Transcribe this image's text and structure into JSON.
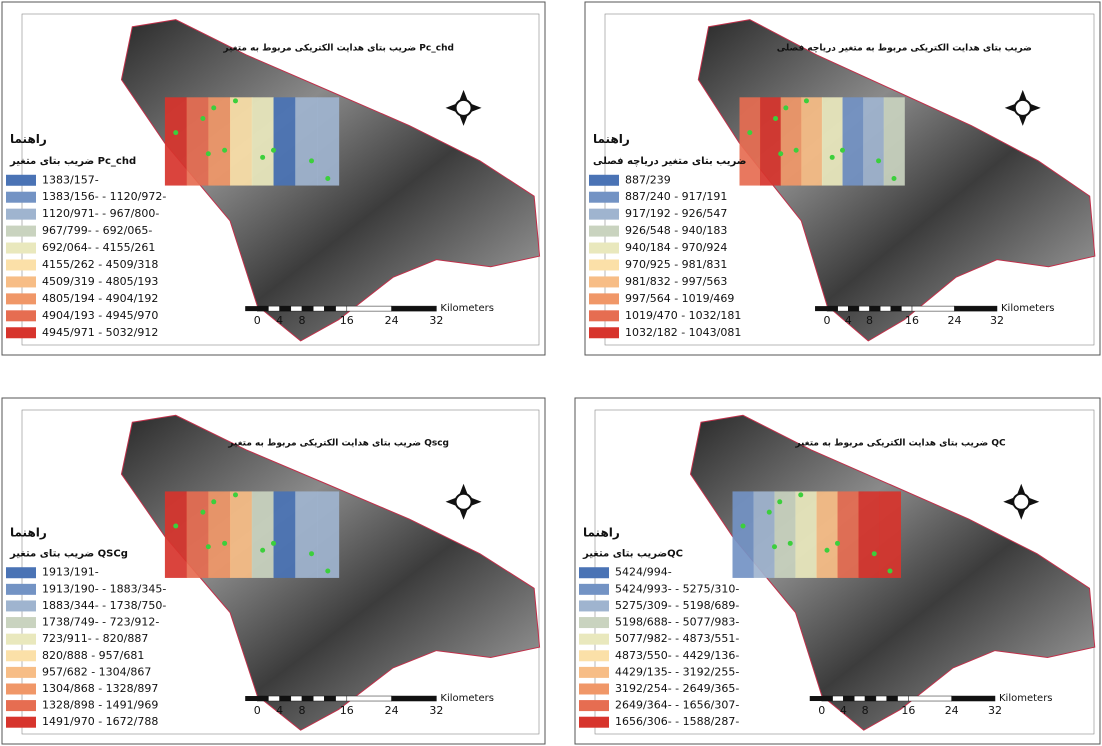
{
  "panels": [
    {
      "title": "ضریب بتای هدایت الکتریکی مربوط به متغیر Pc_chd",
      "legend_heading": "راهنما",
      "legend_title": "ضریب بتای متغیر Pc_chd",
      "legend": [
        {
          "label": "1383/157-",
          "color": "#4a73b5"
        },
        {
          "label": "1383/156- - 1120/972-",
          "color": "#7393c4"
        },
        {
          "label": "1120/971- - 967/800-",
          "color": "#9fb4cf"
        },
        {
          "label": "967/799- - 692/065-",
          "color": "#c9d3bf"
        },
        {
          "label": "692/064- - 4155/261",
          "color": "#e9e8bd"
        },
        {
          "label": "4155/262 - 4509/318",
          "color": "#fbe0a8"
        },
        {
          "label": "4509/319 - 4805/193",
          "color": "#f7bd86"
        },
        {
          "label": "4805/194 - 4904/192",
          "color": "#f09768"
        },
        {
          "label": "4904/193 - 4945/970",
          "color": "#e66d51"
        },
        {
          "label": "4945/971 - 5032/912",
          "color": "#d7342c"
        }
      ],
      "scale_labels": [
        "0",
        "4",
        "8",
        "16",
        "24",
        "32"
      ],
      "scale_unit": "Kilometers"
    },
    {
      "title": "ضریب بتای هدایت الکتریکی مربوط به متغیر دریاچه فصلی",
      "legend_heading": "راهنما",
      "legend_title": "ضریب بتای متغیر دریاچه فصلی",
      "legend": [
        {
          "label": "887/239",
          "color": "#4a73b5"
        },
        {
          "label": "887/240 - 917/191",
          "color": "#7393c4"
        },
        {
          "label": "917/192 - 926/547",
          "color": "#9fb4cf"
        },
        {
          "label": "926/548 - 940/183",
          "color": "#c9d3bf"
        },
        {
          "label": "940/184 - 970/924",
          "color": "#e9e8bd"
        },
        {
          "label": "970/925 - 981/831",
          "color": "#fbe0a8"
        },
        {
          "label": "981/832 - 997/563",
          "color": "#f7bd86"
        },
        {
          "label": "997/564 - 1019/469",
          "color": "#f09768"
        },
        {
          "label": "1019/470 - 1032/181",
          "color": "#e66d51"
        },
        {
          "label": "1032/182 - 1043/081",
          "color": "#d7342c"
        }
      ],
      "scale_labels": [
        "0",
        "4",
        "8",
        "16",
        "24",
        "32"
      ],
      "scale_unit": "Kilometers"
    },
    {
      "title": "ضریب بتای هدایت الکتریکی مربوط به متغیر Qscg",
      "legend_heading": "راهنما",
      "legend_title": "ضریب بتای متغیر QSCg",
      "legend": [
        {
          "label": "1913/191-",
          "color": "#4a73b5"
        },
        {
          "label": "1913/190- - 1883/345-",
          "color": "#7393c4"
        },
        {
          "label": "1883/344- - 1738/750-",
          "color": "#9fb4cf"
        },
        {
          "label": "1738/749- - 723/912-",
          "color": "#c9d3bf"
        },
        {
          "label": "723/911- - 820/887",
          "color": "#e9e8bd"
        },
        {
          "label": "820/888 - 957/681",
          "color": "#fbe0a8"
        },
        {
          "label": "957/682 - 1304/867",
          "color": "#f7bd86"
        },
        {
          "label": "1304/868 - 1328/897",
          "color": "#f09768"
        },
        {
          "label": "1328/898 - 1491/969",
          "color": "#e66d51"
        },
        {
          "label": "1491/970 - 1672/788",
          "color": "#d7342c"
        }
      ],
      "scale_labels": [
        "0",
        "4",
        "8",
        "16",
        "24",
        "32"
      ],
      "scale_unit": "Kilometers"
    },
    {
      "title": "ضریب بتای هدایت الکتریکی مربوط به متغیر QC",
      "legend_heading": "راهنما",
      "legend_title": "ضریب بتای متغیرQC",
      "legend": [
        {
          "label": "5424/994-",
          "color": "#4a73b5"
        },
        {
          "label": "5424/993- - 5275/310-",
          "color": "#7393c4"
        },
        {
          "label": "5275/309- - 5198/689-",
          "color": "#9fb4cf"
        },
        {
          "label": "5198/688- - 5077/983-",
          "color": "#c9d3bf"
        },
        {
          "label": "5077/982- - 4873/551-",
          "color": "#e9e8bd"
        },
        {
          "label": "4873/550- - 4429/136-",
          "color": "#fbe0a8"
        },
        {
          "label": "4429/135- - 3192/255-",
          "color": "#f7bd86"
        },
        {
          "label": "3192/254- - 2649/365-",
          "color": "#f09768"
        },
        {
          "label": "2649/364- - 1656/307-",
          "color": "#e66d51"
        },
        {
          "label": "1656/306- - 1588/287-",
          "color": "#d7342c"
        }
      ],
      "scale_labels": [
        "0",
        "4",
        "8",
        "16",
        "24",
        "32"
      ],
      "scale_unit": "Kilometers"
    }
  ]
}
